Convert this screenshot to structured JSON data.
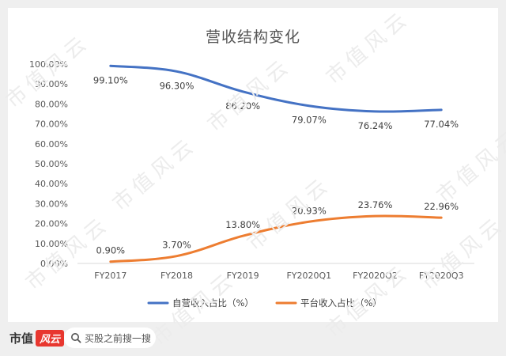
{
  "chart_data": {
    "type": "line",
    "title": "营收结构变化",
    "categories": [
      "FY2017",
      "FY2018",
      "FY2019",
      "FY2020Q1",
      "FY2020Q2",
      "FY2020Q3"
    ],
    "y_ticks": [
      "0.00%",
      "10.00%",
      "20.00%",
      "30.00%",
      "40.00%",
      "50.00%",
      "60.00%",
      "70.00%",
      "80.00%",
      "90.00%",
      "100.00%"
    ],
    "ylim": [
      0,
      100
    ],
    "grid": false,
    "legend_position": "bottom",
    "series": [
      {
        "name": "自营收入占比（%）",
        "color": "#4472c4",
        "values": [
          99.1,
          96.3,
          86.2,
          79.07,
          76.24,
          77.04
        ],
        "labels": [
          "99.10%",
          "96.30%",
          "86.20%",
          "79.07%",
          "76.24%",
          "77.04%"
        ]
      },
      {
        "name": "平台收入占比（%）",
        "color": "#ed7d31",
        "values": [
          0.9,
          3.7,
          13.8,
          20.93,
          23.76,
          22.96
        ],
        "labels": [
          "0.90%",
          "3.70%",
          "13.80%",
          "20.93%",
          "23.76%",
          "22.96%"
        ]
      }
    ]
  },
  "watermark": {
    "text": "市值风云"
  },
  "footer": {
    "brand": "市值",
    "brand_mark": "风云",
    "search_placeholder": "买股之前搜一搜"
  }
}
